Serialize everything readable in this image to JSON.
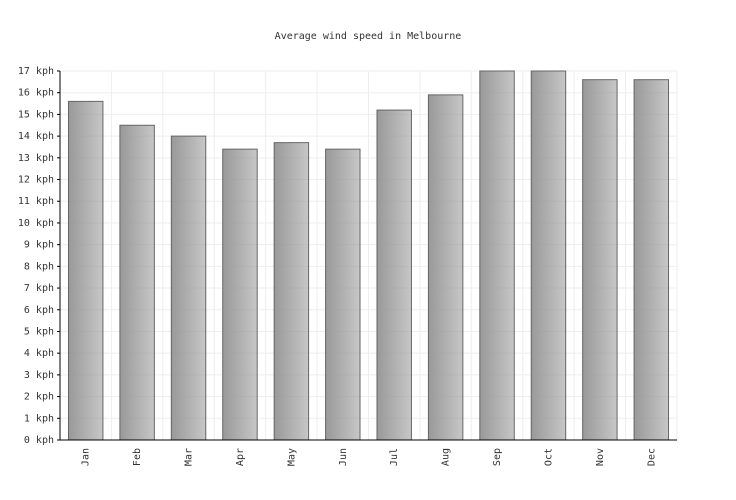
{
  "chart_data": {
    "type": "bar",
    "title": "Average wind speed in Melbourne",
    "categories": [
      "Jan",
      "Feb",
      "Mar",
      "Apr",
      "May",
      "Jun",
      "Jul",
      "Aug",
      "Sep",
      "Oct",
      "Nov",
      "Dec"
    ],
    "values": [
      15.6,
      14.5,
      14.0,
      13.4,
      13.7,
      13.4,
      15.2,
      15.9,
      17.0,
      17.0,
      16.6,
      16.6
    ],
    "color": "#999999",
    "ylim": [
      0,
      17
    ],
    "yticks": [
      {
        "value": 0,
        "label": "0 kph"
      },
      {
        "value": 1,
        "label": "1 kph"
      },
      {
        "value": 2,
        "label": "2 kph"
      },
      {
        "value": 3,
        "label": "3 kph"
      },
      {
        "value": 4,
        "label": "4 kph"
      },
      {
        "value": 5,
        "label": "5 kph"
      },
      {
        "value": 6,
        "label": "6 kph"
      },
      {
        "value": 7,
        "label": "7 kph"
      },
      {
        "value": 8,
        "label": "8 kph"
      },
      {
        "value": 9,
        "label": "9 kph"
      },
      {
        "value": 10,
        "label": "10 kph"
      },
      {
        "value": 11,
        "label": "11 kph"
      },
      {
        "value": 12,
        "label": "12 kph"
      },
      {
        "value": 13,
        "label": "13 kph"
      },
      {
        "value": 14,
        "label": "14 kph"
      },
      {
        "value": 15,
        "label": "15 kph"
      },
      {
        "value": 16,
        "label": "16 kph"
      },
      {
        "value": 17,
        "label": "17 kph"
      }
    ],
    "grid": true
  }
}
